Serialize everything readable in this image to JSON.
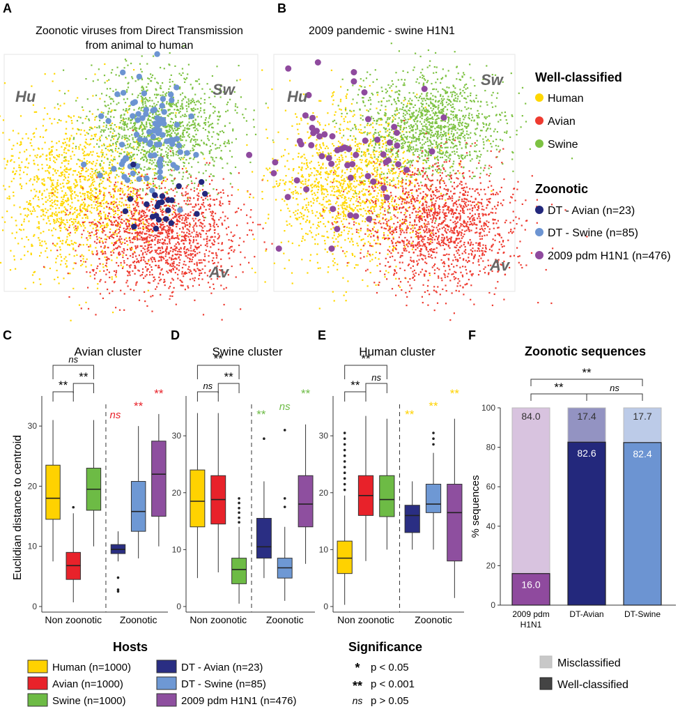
{
  "colors": {
    "human": "#FFD700",
    "avian": "#EE3B30",
    "swine": "#7DC242",
    "dt_avian": "#23287C",
    "dt_swine": "#6C94D2",
    "pdm": "#8F4A9E",
    "human_box": "#FFD200",
    "avian_box": "#E8222A",
    "swine_box": "#6DBB45",
    "dt_avian_box": "#2A2E83",
    "dt_swine_box": "#6E98D4",
    "pdm_box": "#8E4F9F"
  },
  "panelA": {
    "letter": "A",
    "title1": "Zoonotic viruses from Direct Transmission",
    "title2": "from animal to human",
    "hu": "Hu",
    "sw": "Sw",
    "av": "Av"
  },
  "panelB": {
    "letter": "B",
    "title": "2009 pandemic - swine H1N1",
    "hu": "Hu",
    "sw": "Sw",
    "av": "Av"
  },
  "legendTop": {
    "well_title": "Well-classified",
    "human": "Human",
    "avian": "Avian",
    "swine": "Swine",
    "zoo_title": "Zoonotic",
    "dt_avian": "DT - Avian (n=23)",
    "dt_swine": "DT - Swine (n=85)",
    "pdm": "2009 pdm H1N1 (n=476)"
  },
  "chart_data": [
    {
      "panel": "C",
      "type": "box",
      "title": "Avian cluster",
      "ylabel": "Euclidian distance to centroid",
      "ylim": [
        0,
        35
      ],
      "yticks": [
        0,
        10,
        20,
        30
      ],
      "groups": [
        "Non zoonotic",
        "Zoonotic"
      ],
      "boxes": [
        {
          "host": "Human",
          "color": "human_box",
          "min": 7.5,
          "q1": 14.5,
          "median": 18,
          "q3": 23.5,
          "max": 31,
          "outliers": []
        },
        {
          "host": "Avian",
          "color": "avian_box",
          "min": 0.7,
          "q1": 4.5,
          "median": 6.8,
          "q3": 9,
          "max": 15.5,
          "outliers": [
            16.5
          ]
        },
        {
          "host": "Swine",
          "color": "swine_box",
          "min": 10,
          "q1": 16,
          "median": 19.5,
          "q3": 23,
          "max": 31,
          "outliers": []
        },
        {
          "host": "DT - Avian",
          "color": "dt_avian_box",
          "min": 7.5,
          "q1": 8.8,
          "median": 9.5,
          "q3": 10.3,
          "max": 12.5,
          "outliers": [
            4.8,
            2.8,
            2.5
          ]
        },
        {
          "host": "DT - Swine",
          "color": "dt_swine_box",
          "min": 8,
          "q1": 12.5,
          "median": 15.8,
          "q3": 20.8,
          "max": 30,
          "outliers": []
        },
        {
          "host": "2009 pdm H1N1",
          "color": "pdm_box",
          "min": 10,
          "q1": 15,
          "median": 22,
          "q3": 27.5,
          "max": 32,
          "outliers": []
        }
      ],
      "brackets": [
        {
          "from": 0,
          "to": 2,
          "label": "ns",
          "italic": true
        },
        {
          "from": 0,
          "to": 1,
          "label": "**",
          "italic": false
        },
        {
          "from": 1,
          "to": 2,
          "label": "**",
          "italic": false
        }
      ],
      "zoonotic_marks": [
        {
          "box": 3,
          "label": "ns",
          "italic": true,
          "color": "avian_box"
        },
        {
          "box": 4,
          "label": "**",
          "italic": false,
          "color": "avian_box"
        },
        {
          "box": 5,
          "label": "**",
          "italic": false,
          "color": "avian_box"
        }
      ]
    },
    {
      "panel": "D",
      "type": "box",
      "title": "Swine cluster",
      "ylabel": "",
      "ylim": [
        0,
        37
      ],
      "yticks": [
        0,
        10,
        20,
        30
      ],
      "groups": [
        "Non zoonotic",
        "Zoonotic"
      ],
      "boxes": [
        {
          "host": "Human",
          "color": "human_box",
          "min": 5,
          "q1": 14,
          "median": 18.5,
          "q3": 24,
          "max": 34,
          "outliers": []
        },
        {
          "host": "Avian",
          "color": "avian_box",
          "min": 6,
          "q1": 14.5,
          "median": 18.8,
          "q3": 23,
          "max": 34,
          "outliers": []
        },
        {
          "host": "Swine",
          "color": "swine_box",
          "min": 0.5,
          "q1": 4,
          "median": 6.5,
          "q3": 8.5,
          "max": 14,
          "outliers": [
            14.8,
            15.6,
            16.5,
            17.3,
            18.2,
            19
          ]
        },
        {
          "host": "DT - Avian",
          "color": "dt_avian_box",
          "min": 5,
          "q1": 8.5,
          "median": 10.5,
          "q3": 15.5,
          "max": 22,
          "outliers": [
            29.5
          ]
        },
        {
          "host": "DT - Swine",
          "color": "dt_swine_box",
          "min": 1,
          "q1": 5,
          "median": 6.8,
          "q3": 8.5,
          "max": 14,
          "outliers": [
            17.5,
            19,
            31
          ]
        },
        {
          "host": "2009 pdm H1N1",
          "color": "pdm_box",
          "min": 7.5,
          "q1": 14,
          "median": 18,
          "q3": 23,
          "max": 32,
          "outliers": []
        }
      ],
      "brackets": [
        {
          "from": 0,
          "to": 2,
          "label": "**",
          "italic": false
        },
        {
          "from": 0,
          "to": 1,
          "label": "ns",
          "italic": true
        },
        {
          "from": 1,
          "to": 2,
          "label": "**",
          "italic": false
        }
      ],
      "zoonotic_marks": [
        {
          "box": 3,
          "label": "**",
          "italic": false,
          "color": "swine_box"
        },
        {
          "box": 4,
          "label": "ns",
          "italic": true,
          "color": "swine_box"
        },
        {
          "box": 5,
          "label": "**",
          "italic": false,
          "color": "swine_box"
        }
      ]
    },
    {
      "panel": "E",
      "type": "box",
      "title": "Human cluster",
      "ylabel": "",
      "ylim": [
        0,
        37
      ],
      "yticks": [
        0,
        10,
        20,
        30
      ],
      "groups": [
        "Non zoonotic",
        "Zoonotic"
      ],
      "boxes": [
        {
          "host": "Human",
          "color": "human_box",
          "min": 0.3,
          "q1": 5.8,
          "median": 8.5,
          "q3": 11.5,
          "max": 19.5,
          "outliers": [
            20.5,
            21.5,
            22.5,
            23.5,
            24.5,
            25.5,
            26.5,
            27.5,
            28.5,
            29.5,
            30.5
          ]
        },
        {
          "host": "Avian",
          "color": "avian_box",
          "min": 8,
          "q1": 16,
          "median": 19.5,
          "q3": 23,
          "max": 33.5,
          "outliers": []
        },
        {
          "host": "Swine",
          "color": "swine_box",
          "min": 10,
          "q1": 15.8,
          "median": 18.8,
          "q3": 23,
          "max": 33,
          "outliers": []
        },
        {
          "host": "DT - Avian",
          "color": "dt_avian_box",
          "min": 10,
          "q1": 13,
          "median": 16,
          "q3": 17.8,
          "max": 22,
          "outliers": []
        },
        {
          "host": "DT - Swine",
          "color": "dt_swine_box",
          "min": 10,
          "q1": 16.5,
          "median": 18,
          "q3": 21.5,
          "max": 27,
          "outliers": [
            28.5,
            29.5,
            30.5
          ]
        },
        {
          "host": "2009 pdm H1N1",
          "color": "pdm_box",
          "min": 1.5,
          "q1": 8,
          "median": 16.5,
          "q3": 21.5,
          "max": 33,
          "outliers": []
        }
      ],
      "brackets": [
        {
          "from": 0,
          "to": 2,
          "label": "**",
          "italic": false
        },
        {
          "from": 0,
          "to": 1,
          "label": "**",
          "italic": false
        },
        {
          "from": 1,
          "to": 2,
          "label": "ns",
          "italic": true
        }
      ],
      "zoonotic_marks": [
        {
          "box": 3,
          "label": "**",
          "italic": false,
          "color": "human_box"
        },
        {
          "box": 4,
          "label": "**",
          "italic": false,
          "color": "human_box"
        },
        {
          "box": 5,
          "label": "**",
          "italic": false,
          "color": "human_box"
        }
      ]
    },
    {
      "panel": "F",
      "type": "bar",
      "title": "Zoonotic sequences",
      "ylabel": "% sequences",
      "ylim": [
        0,
        100
      ],
      "yticks": [
        0,
        20,
        40,
        60,
        80,
        100
      ],
      "categories": [
        "2009 pdm\nH1N1",
        "DT-Avian",
        "DT-Swine"
      ],
      "series": [
        {
          "name": "Well-classified",
          "values": [
            16.0,
            82.6,
            82.4
          ],
          "labels": [
            "16.0",
            "82.6",
            "82.4"
          ]
        },
        {
          "name": "Misclassified",
          "values": [
            84.0,
            17.4,
            17.7
          ],
          "labels": [
            "84.0",
            "17.4",
            "17.7"
          ]
        }
      ],
      "bar_colors": [
        "pdm",
        "dt_avian",
        "dt_swine"
      ],
      "label_colors_well": [
        "#ffffff",
        "#ffffff",
        "#ffffff"
      ],
      "label_colors_mis": [
        "#333333",
        "#333333",
        "#333333"
      ],
      "brackets": [
        {
          "from": 0,
          "to": 2,
          "label": "**",
          "italic": false
        },
        {
          "from": 0,
          "to": 1,
          "label": "**",
          "italic": false
        },
        {
          "from": 1,
          "to": 2,
          "label": "ns",
          "italic": true
        }
      ],
      "legend": [
        "Misclassified",
        "Well-classified"
      ]
    }
  ],
  "legendBottom": {
    "hosts_title": "Hosts",
    "human": "Human (n=1000)",
    "avian": "Avian (n=1000)",
    "swine": "Swine (n=1000)",
    "dt_avian": "DT - Avian (n=23)",
    "dt_swine": "DT - Swine (n=85)",
    "pdm": "2009 pdm H1N1 (n=476)",
    "sig_title": "Significance",
    "sig1_sym": "*",
    "sig1_txt": "p < 0.05",
    "sig2_sym": "**",
    "sig2_txt": "p < 0.001",
    "sig3_sym": "ns",
    "sig3_txt": "p > 0.05"
  },
  "panel_letters": {
    "C": "C",
    "D": "D",
    "E": "E",
    "F": "F"
  }
}
